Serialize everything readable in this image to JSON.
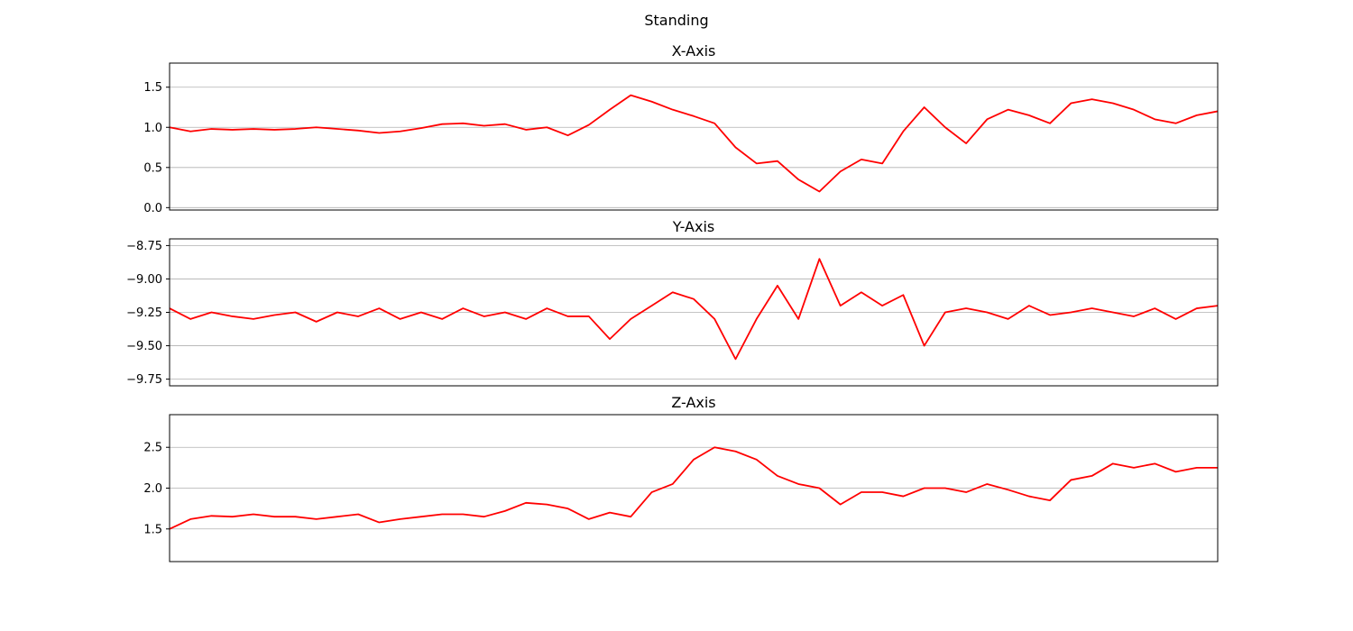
{
  "figure": {
    "title": "Standing"
  },
  "chart_data": [
    {
      "type": "line",
      "title": "X-Axis",
      "xlabel": "",
      "ylabel": "",
      "ylim": [
        -0.03,
        1.8
      ],
      "yticks": [
        0.0,
        0.5,
        1.0,
        1.5
      ],
      "ytick_labels": [
        "0.0",
        "0.5",
        "1.0",
        "1.5"
      ],
      "grid": true,
      "show_xticks": false,
      "color": "#ff0000",
      "series": [
        {
          "name": "",
          "x": [
            0,
            20,
            40,
            60,
            80,
            100,
            120,
            140,
            160,
            180,
            200,
            220,
            240,
            260,
            280,
            300,
            320,
            340,
            360,
            380,
            400,
            420,
            440,
            460,
            480,
            500,
            520,
            540,
            560,
            580,
            600,
            620,
            640,
            660,
            680,
            700,
            720,
            740,
            760,
            780,
            800,
            820,
            840,
            860,
            880,
            900,
            920,
            940,
            960,
            980,
            1000
          ],
          "y": [
            1.0,
            0.95,
            0.98,
            0.97,
            0.98,
            0.97,
            0.98,
            1.0,
            0.98,
            0.96,
            0.93,
            0.95,
            0.99,
            1.04,
            1.05,
            1.02,
            1.04,
            0.97,
            1.0,
            0.9,
            1.03,
            1.22,
            1.4,
            1.32,
            1.22,
            1.14,
            1.05,
            0.75,
            0.55,
            0.58,
            0.35,
            0.2,
            0.45,
            0.6,
            0.55,
            0.95,
            1.25,
            1.0,
            0.8,
            1.1,
            1.22,
            1.15,
            1.05,
            1.3,
            1.35,
            1.3,
            1.22,
            1.1,
            1.05,
            1.15,
            1.2
          ]
        }
      ]
    },
    {
      "type": "line",
      "title": "Y-Axis",
      "xlabel": "",
      "ylabel": "",
      "ylim": [
        -9.8,
        -8.7
      ],
      "yticks": [
        -9.75,
        -9.5,
        -9.25,
        -9.0,
        -8.75
      ],
      "ytick_labels": [
        "−9.75",
        "−9.50",
        "−9.25",
        "−9.00",
        "−8.75"
      ],
      "grid": true,
      "show_xticks": false,
      "color": "#ff0000",
      "series": [
        {
          "name": "",
          "x": [
            0,
            20,
            40,
            60,
            80,
            100,
            120,
            140,
            160,
            180,
            200,
            220,
            240,
            260,
            280,
            300,
            320,
            340,
            360,
            380,
            400,
            420,
            440,
            460,
            480,
            500,
            520,
            540,
            560,
            580,
            600,
            620,
            640,
            660,
            680,
            700,
            720,
            740,
            760,
            780,
            800,
            820,
            840,
            860,
            880,
            900,
            920,
            940,
            960,
            980,
            1000
          ],
          "y": [
            -9.22,
            -9.3,
            -9.25,
            -9.28,
            -9.3,
            -9.27,
            -9.25,
            -9.32,
            -9.25,
            -9.28,
            -9.22,
            -9.3,
            -9.25,
            -9.3,
            -9.22,
            -9.28,
            -9.25,
            -9.3,
            -9.22,
            -9.28,
            -9.28,
            -9.45,
            -9.3,
            -9.2,
            -9.1,
            -9.15,
            -9.3,
            -9.6,
            -9.3,
            -9.05,
            -9.3,
            -8.85,
            -9.2,
            -9.1,
            -9.2,
            -9.12,
            -9.5,
            -9.25,
            -9.22,
            -9.25,
            -9.3,
            -9.2,
            -9.27,
            -9.25,
            -9.22,
            -9.25,
            -9.28,
            -9.22,
            -9.3,
            -9.22,
            -9.2
          ]
        }
      ]
    },
    {
      "type": "line",
      "title": "Z-Axis",
      "xlabel": "",
      "ylabel": "",
      "ylim": [
        1.1,
        2.9
      ],
      "yticks": [
        1.5,
        2.0,
        2.5
      ],
      "ytick_labels": [
        "1.5",
        "2.0",
        "2.5"
      ],
      "grid": true,
      "show_xticks": false,
      "color": "#ff0000",
      "series": [
        {
          "name": "",
          "x": [
            0,
            20,
            40,
            60,
            80,
            100,
            120,
            140,
            160,
            180,
            200,
            220,
            240,
            260,
            280,
            300,
            320,
            340,
            360,
            380,
            400,
            420,
            440,
            460,
            480,
            500,
            520,
            540,
            560,
            580,
            600,
            620,
            640,
            660,
            680,
            700,
            720,
            740,
            760,
            780,
            800,
            820,
            840,
            860,
            880,
            900,
            920,
            940,
            960,
            980,
            1000
          ],
          "y": [
            1.5,
            1.62,
            1.66,
            1.65,
            1.68,
            1.65,
            1.65,
            1.62,
            1.65,
            1.68,
            1.58,
            1.62,
            1.65,
            1.68,
            1.68,
            1.65,
            1.72,
            1.82,
            1.8,
            1.75,
            1.62,
            1.7,
            1.65,
            1.95,
            2.05,
            2.35,
            2.5,
            2.45,
            2.35,
            2.15,
            2.05,
            2.0,
            1.8,
            1.95,
            1.95,
            1.9,
            2.0,
            2.0,
            1.95,
            2.05,
            1.98,
            1.9,
            1.85,
            2.1,
            2.15,
            2.3,
            2.25,
            2.3,
            2.2,
            2.25,
            2.25
          ]
        }
      ]
    }
  ]
}
